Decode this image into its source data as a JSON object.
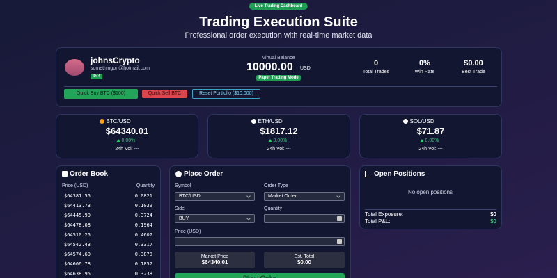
{
  "header": {
    "badge": "Live Trading Dashboard",
    "title": "Trading Execution Suite",
    "subtitle": "Professional order execution with real-time market data"
  },
  "account": {
    "username": "johnsCrypto",
    "email": "somethingon@hotmail.com",
    "id_badge": "ID: 4",
    "balance_label": "Virtual Balance",
    "balance": "10000.00",
    "currency": "USD",
    "mode_badge": "Paper Trading Mode",
    "stats": [
      {
        "value": "0",
        "label": "Total Trades"
      },
      {
        "value": "0%",
        "label": "Win Rate"
      },
      {
        "value": "$0.00",
        "label": "Best Trade"
      }
    ],
    "buttons": [
      "Quick Buy BTC ($100)",
      "Quick Sell BTC",
      "Reset Portfolio ($10,000)"
    ]
  },
  "tickers": [
    {
      "symbol": "BTC/USD",
      "price": "$64340.01",
      "change": "0.00%",
      "volume": "24h Vol: ---"
    },
    {
      "symbol": "ETH/USD",
      "price": "$1817.12",
      "change": "0.00%",
      "volume": "24h Vol: ---"
    },
    {
      "symbol": "SOL/USD",
      "price": "$71.87",
      "change": "0.00%",
      "volume": "24h Vol: ---"
    }
  ],
  "order_book": {
    "title": "Order Book",
    "headers": [
      "Price (USD)",
      "Quantity"
    ],
    "rows": [
      [
        "$64381.55",
        "0.0821"
      ],
      [
        "$64413.73",
        "0.1039"
      ],
      [
        "$64445.90",
        "0.3724"
      ],
      [
        "$64478.08",
        "0.1964"
      ],
      [
        "$64510.25",
        "0.4607"
      ],
      [
        "$64542.43",
        "0.3317"
      ],
      [
        "$64574.60",
        "0.3878"
      ],
      [
        "$64606.78",
        "0.1857"
      ],
      [
        "$64638.95",
        "0.3238"
      ]
    ]
  },
  "place_order": {
    "title": "Place Order",
    "symbol": {
      "label": "Symbol",
      "value": "BTC/USD"
    },
    "order_type": {
      "label": "Order Type",
      "value": "Market Order"
    },
    "side": {
      "label": "Side",
      "value": "BUY"
    },
    "quantity": {
      "label": "Quantity"
    },
    "price": {
      "label": "Price (USD)"
    },
    "market_price": {
      "label": "Market Price",
      "value": "$64340.01"
    },
    "est_total": {
      "label": "Est. Total",
      "value": "$0.00"
    },
    "submit": "Place Order"
  },
  "positions": {
    "title": "Open Positions",
    "empty": "No open positions",
    "totals": [
      {
        "label": "Total Exposure:",
        "value": "$0"
      },
      {
        "label": "Total P&L:",
        "value": "$0"
      }
    ]
  }
}
